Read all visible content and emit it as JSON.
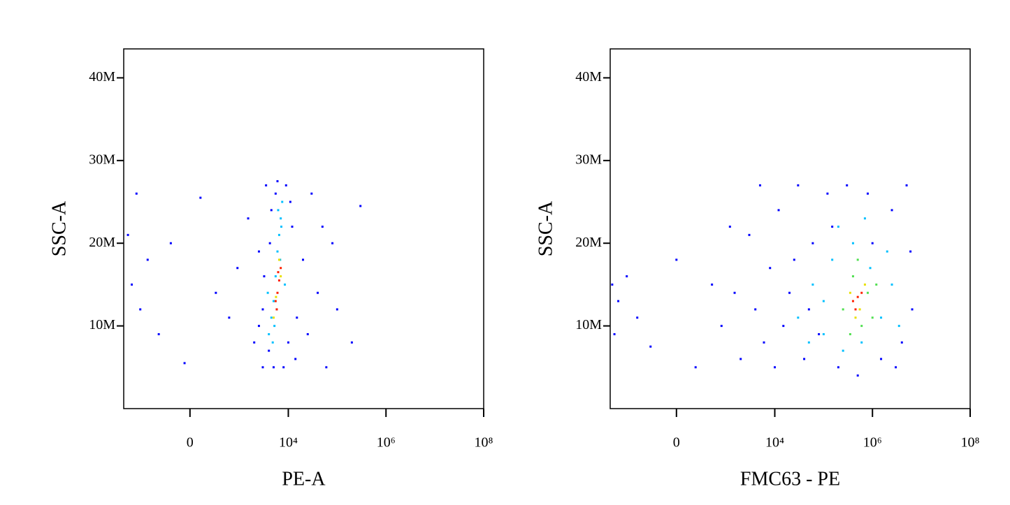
{
  "chart_data": [
    {
      "type": "scatter",
      "xlabel": "PE-A",
      "ylabel": "SSC-A",
      "xscale": "asinh",
      "xlim": [
        -2200,
        100000000
      ],
      "ylim": [
        0,
        43500000
      ],
      "xticks": [
        0,
        {
          "value": 10000,
          "label": "10⁴"
        },
        {
          "value": 1000000,
          "label": "10⁶"
        },
        {
          "value": 100000000,
          "label": "10⁸"
        }
      ],
      "yticks": [
        {
          "value": 10000000,
          "label": "10M"
        },
        {
          "value": 20000000,
          "label": "20M"
        },
        {
          "value": 30000000,
          "label": "30M"
        },
        {
          "value": 40000000,
          "label": "40M"
        }
      ],
      "series": [
        {
          "color": "#0000ff",
          "x": [
            -1800,
            -1500,
            -1200,
            -1000,
            -700,
            -400,
            -200,
            -50,
            100,
            300,
            600,
            900,
            1500,
            2000,
            2500,
            3000,
            3500,
            3000,
            4000,
            4500,
            5000,
            5500,
            9000,
            10000,
            12000,
            15000,
            20000,
            30000,
            40000,
            60000,
            80000,
            100000,
            200000,
            300000,
            2500,
            3200,
            11000,
            14000,
            4200,
            8000,
            6000,
            25000,
            50000
          ],
          "values": [
            21000000,
            15000000,
            26000000,
            12000000,
            18000000,
            9000000,
            20000000,
            5500000,
            25500000,
            14000000,
            11000000,
            17000000,
            23000000,
            8000000,
            19000000,
            5000000,
            27000000,
            12000000,
            7000000,
            24000000,
            5000000,
            26000000,
            27000000,
            8000000,
            22000000,
            11000000,
            18000000,
            26000000,
            14000000,
            5000000,
            20000000,
            12000000,
            8000000,
            24500000,
            10000000,
            16000000,
            25000000,
            6000000,
            20000000,
            5000000,
            27500000,
            9000000,
            22000000
          ]
        },
        {
          "color": "#00c0ff",
          "x": [
            4000,
            4500,
            5000,
            5500,
            6000,
            6500,
            7000,
            7500,
            4800,
            6800,
            5200,
            7200,
            3800,
            8500,
            5800,
            6200
          ],
          "values": [
            9000000,
            11000000,
            13000000,
            16000000,
            19000000,
            21000000,
            23000000,
            25000000,
            8000000,
            18000000,
            10000000,
            22000000,
            14000000,
            15000000,
            12000000,
            24000000
          ]
        },
        {
          "color": "#e8e000",
          "x": [
            5000,
            6500,
            5600,
            7000
          ],
          "values": [
            11000000,
            18000000,
            13500000,
            16000000
          ]
        },
        {
          "color": "#ff2000",
          "x": [
            5500,
            6000,
            6500,
            6200,
            5800,
            7000
          ],
          "values": [
            13000000,
            14000000,
            15500000,
            16500000,
            12000000,
            17000000
          ]
        }
      ]
    },
    {
      "type": "scatter",
      "xlabel": "FMC63 - PE",
      "ylabel": "SSC-A",
      "xscale": "asinh",
      "xlim": [
        -2200,
        100000000
      ],
      "ylim": [
        0,
        43500000
      ],
      "xticks": [
        0,
        {
          "value": 10000,
          "label": "10⁴"
        },
        {
          "value": 1000000,
          "label": "10⁶"
        },
        {
          "value": 100000000,
          "label": "10⁸"
        }
      ],
      "yticks": [
        {
          "value": 10000000,
          "label": "10M"
        },
        {
          "value": 20000000,
          "label": "20M"
        },
        {
          "value": 30000000,
          "label": "30M"
        },
        {
          "value": 40000000,
          "label": "40M"
        }
      ],
      "series": [
        {
          "color": "#0000ff",
          "x": [
            -2000,
            -1800,
            -1500,
            -1000,
            -600,
            -300,
            0,
            200,
            500,
            800,
            1200,
            1500,
            2000,
            3000,
            4000,
            5000,
            6000,
            8000,
            10000,
            12000,
            15000,
            20000,
            30000,
            40000,
            60000,
            80000,
            120000,
            200000,
            300000,
            500000,
            800000,
            1500000,
            2500000,
            4000000,
            6000000,
            6500000,
            5000000,
            3000000,
            1000000,
            150000,
            50000,
            25000
          ],
          "values": [
            15000000,
            9000000,
            13000000,
            16000000,
            11000000,
            7500000,
            18000000,
            5000000,
            15000000,
            10000000,
            22000000,
            14000000,
            6000000,
            21000000,
            12000000,
            27000000,
            8000000,
            17000000,
            5000000,
            24000000,
            10000000,
            14000000,
            27000000,
            6000000,
            20000000,
            9000000,
            26000000,
            5000000,
            27000000,
            4000000,
            26000000,
            6000000,
            24000000,
            8000000,
            19000000,
            12000000,
            27000000,
            5000000,
            20000000,
            22000000,
            12000000,
            18000000
          ]
        },
        {
          "color": "#00c0ff",
          "x": [
            30000,
            60000,
            100000,
            150000,
            250000,
            400000,
            600000,
            900000,
            1500000,
            2500000,
            3500000,
            100000,
            200000,
            700000,
            2000000,
            50000
          ],
          "values": [
            11000000,
            15000000,
            9000000,
            18000000,
            7000000,
            20000000,
            8000000,
            17000000,
            11000000,
            15000000,
            10000000,
            13000000,
            22000000,
            23000000,
            19000000,
            8000000
          ]
        },
        {
          "color": "#50e050",
          "x": [
            250000,
            400000,
            600000,
            800000,
            1200000,
            350000,
            500000,
            1000000
          ],
          "values": [
            12000000,
            16000000,
            10000000,
            14000000,
            15000000,
            9000000,
            18000000,
            11000000
          ]
        },
        {
          "color": "#e8e000",
          "x": [
            350000,
            550000,
            700000,
            450000
          ],
          "values": [
            14000000,
            12000000,
            15000000,
            11000000
          ]
        },
        {
          "color": "#ff2000",
          "x": [
            400000,
            500000,
            450000,
            600000
          ],
          "values": [
            13000000,
            13500000,
            12000000,
            14000000
          ]
        }
      ]
    }
  ]
}
